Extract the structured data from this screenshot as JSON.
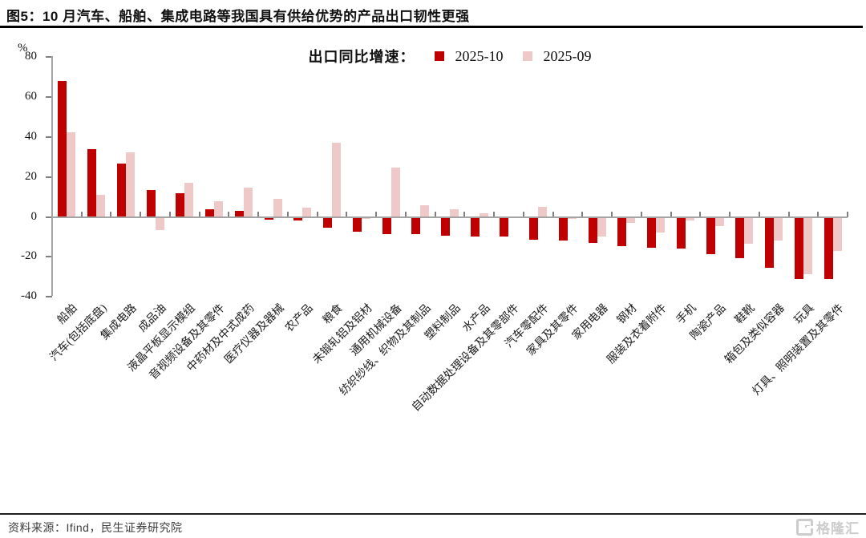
{
  "title": "图5：10 月汽车、船舶、集成电路等我国具有供给优势的产品出口韧性更强",
  "legend": {
    "label": "出口同比增速：",
    "series1_label": "2025-10",
    "series2_label": "2025-09"
  },
  "colors": {
    "series1": "#c00000",
    "series2": "#eec9c8",
    "axis": "#a3a3a3",
    "tick": "#7f7f7f"
  },
  "footer": {
    "source": "资料来源：Ifind，民生证券研究院",
    "logo_text": "格隆汇"
  },
  "chart_data": {
    "type": "bar",
    "title": "出口同比增速",
    "unit": "%",
    "ylim": [
      -40,
      80
    ],
    "yticks": [
      80,
      60,
      40,
      20,
      0,
      -20,
      -40
    ],
    "grid": false,
    "legend_position": "top-center",
    "categories": [
      "船舶",
      "汽车(包括底盘)",
      "集成电路",
      "成品油",
      "液晶平板显示模组",
      "音视频设备及其零件",
      "中药材及中式成药",
      "医疗仪器及器械",
      "农产品",
      "粮食",
      "未锻轧铝及铝材",
      "通用机械设备",
      "纺织纱线、织物及其制品",
      "塑料制品",
      "水产品",
      "自动数据处理设备及其零部件",
      "汽车零配件",
      "家具及其零件",
      "家用电器",
      "钢材",
      "服装及衣着附件",
      "手机",
      "陶瓷产品",
      "鞋靴",
      "箱包及类似容器",
      "玩具",
      "灯具、照明装置及其零件"
    ],
    "series": [
      {
        "name": "2025-10",
        "color": "#c00000",
        "values": [
          68,
          34,
          26.5,
          13.5,
          12,
          4,
          3,
          -1.5,
          -2,
          -5.5,
          -7.5,
          -8.5,
          -8.5,
          -9.5,
          -10,
          -10,
          -11.5,
          -12,
          -13,
          -14.5,
          -15.5,
          -16,
          -18.5,
          -20.5,
          -25.5,
          -31,
          -31
        ]
      },
      {
        "name": "2025-09",
        "color": "#eec9c8",
        "values": [
          42.5,
          11,
          32.5,
          -6.5,
          17,
          8,
          14.5,
          9,
          4.5,
          37,
          -1,
          24.5,
          6,
          4,
          2,
          0.3,
          5,
          -1,
          -10,
          -3,
          -8,
          -2,
          -4.5,
          -13.5,
          -12,
          -28.5,
          -17
        ]
      }
    ]
  }
}
